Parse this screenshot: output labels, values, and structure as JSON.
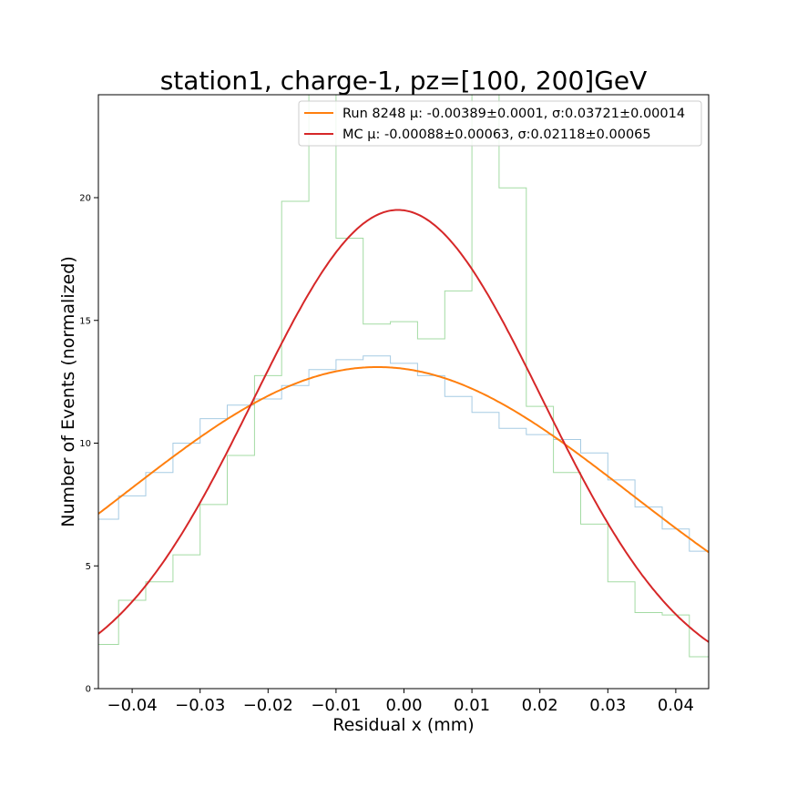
{
  "chart_data": {
    "type": "line",
    "title": "station1, charge-1, pz=[100, 200]GeV",
    "xlabel": "Residual x (mm)",
    "ylabel": "Number of Events (normalized)",
    "xlim": [
      -0.045,
      0.045
    ],
    "ylim": [
      0,
      24.2
    ],
    "x_ticks": [
      -0.04,
      -0.03,
      -0.02,
      -0.01,
      0.0,
      0.01,
      0.02,
      0.03,
      0.04
    ],
    "x_tick_labels": [
      "−0.04",
      "−0.03",
      "−0.02",
      "−0.01",
      "0.00",
      "0.01",
      "0.02",
      "0.03",
      "0.04"
    ],
    "y_ticks": [
      0,
      5,
      10,
      15,
      20
    ],
    "y_tick_labels": [
      "0",
      "5",
      "10",
      "15",
      "20"
    ],
    "grid": false,
    "legend_position": "top-right",
    "series": [
      {
        "name": "Run 8248 μ: -0.00389±0.0001, σ:0.03721±0.00014",
        "kind": "gaussian-fit",
        "mu": -0.00389,
        "sigma": 0.03721,
        "peak": 13.1,
        "color": "#ff7f0e"
      },
      {
        "name": "MC μ: -0.00088±0.00063, σ:0.02118±0.00065",
        "kind": "gaussian-fit",
        "mu": -0.00088,
        "sigma": 0.02118,
        "peak": 19.5,
        "color": "#d62728"
      }
    ],
    "histograms": [
      {
        "kind": "step-histogram",
        "color": "#a6cbe3",
        "bin_edges": [
          -0.046,
          -0.042,
          -0.038,
          -0.034,
          -0.03,
          -0.026,
          -0.022,
          -0.018,
          -0.014,
          -0.01,
          -0.006,
          -0.002,
          0.002,
          0.006,
          0.01,
          0.014,
          0.018,
          0.022,
          0.026,
          0.03,
          0.034,
          0.038,
          0.042,
          0.046
        ],
        "values": [
          6.9,
          7.85,
          8.8,
          10.0,
          11.0,
          11.55,
          11.8,
          12.35,
          13.0,
          13.4,
          13.55,
          13.25,
          12.75,
          11.9,
          11.25,
          10.6,
          10.35,
          10.15,
          9.6,
          8.5,
          7.4,
          6.5,
          5.6
        ]
      },
      {
        "kind": "step-histogram",
        "color": "#a3dba3",
        "bin_edges": [
          -0.046,
          -0.042,
          -0.038,
          -0.034,
          -0.03,
          -0.026,
          -0.022,
          -0.018,
          -0.014,
          -0.01,
          -0.006,
          -0.002,
          0.002,
          0.006,
          0.01,
          0.014,
          0.018,
          0.022,
          0.026,
          0.03,
          0.034,
          0.038,
          0.042,
          0.046
        ],
        "values": [
          1.8,
          3.6,
          4.35,
          5.45,
          7.5,
          9.5,
          12.75,
          19.85,
          24.5,
          18.35,
          14.85,
          14.95,
          14.25,
          16.2,
          24.5,
          20.4,
          11.5,
          8.8,
          6.7,
          4.35,
          3.1,
          3.0,
          1.3
        ]
      }
    ]
  }
}
